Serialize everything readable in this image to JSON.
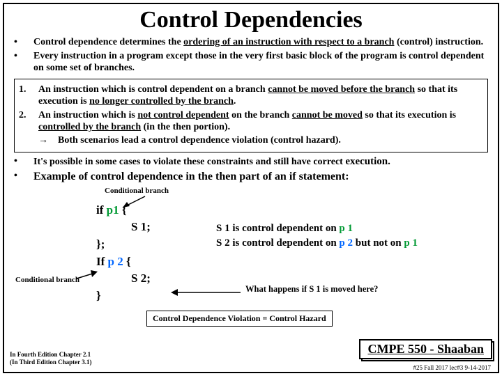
{
  "title": "Control Dependencies",
  "bullets_top": [
    {
      "marker": "•",
      "html": "Control dependence determines the <span class='u'>ordering of an instruction with respect to a branch</span> (control) instruction."
    },
    {
      "marker": "•",
      "html": "Every instruction in a program except those in the very first basic block of the program is control dependent on some set of branches."
    }
  ],
  "boxed": [
    {
      "marker": "1.",
      "html": "An instruction which is control dependent on a branch <span class='u'>cannot be moved before the branch</span> so that its execution is <span class='u'>no longer controlled by the branch</span>."
    },
    {
      "marker": "2.",
      "html": "An instruction which is <span class='u'>not control dependent</span> on the branch <span class='u'>cannot be moved</span> so that its execution is <span class='u'>controlled by the branch</span> (in the then portion).<br><span class='arrowglyph'>→</span>&nbsp;&nbsp;&nbsp;&nbsp;Both scenarios lead a control dependence violation (control hazard)."
    }
  ],
  "bullets_mid": [
    {
      "marker": "•",
      "html": "It's possible in some cases to violate these constraints and still have correct <span style='font-size:15px'>execution.</span>"
    },
    {
      "marker": "•",
      "html": "<span style='font-size:16px'>Example of control dependence in the then part of an if statement:</span>"
    }
  ],
  "cond_label": "Conditional branch",
  "code": {
    "l1a": "if ",
    "l1b": "p1",
    "l1c": " {",
    "l2": "S 1;",
    "l3": "};",
    "l4a": "If ",
    "l4b": "p 2",
    "l4c": "  {",
    "l5": "S 2;",
    "l6": "}"
  },
  "dep_line1a": "S 1 is control dependent on  ",
  "dep_line1b": "p 1",
  "dep_line2a": "S 2 is control dependent on  ",
  "dep_line2b": "p 2",
  "dep_line2c": "  but not on  ",
  "dep_line2d": "p 1",
  "what_q": "What happens if   S 1  is moved here?",
  "violation": "Control Dependence Violation = Control Hazard",
  "course": "CMPE 550 - Shaaban",
  "slide_no": "#25  Fall 2017   lec#3  9-14-2017",
  "edition_l1": "In Fourth Edition Chapter 2.1",
  "edition_l2": "(In Third Edition Chapter 3.1)",
  "colors": {
    "p1": "#009933",
    "p2": "#0066ff"
  }
}
